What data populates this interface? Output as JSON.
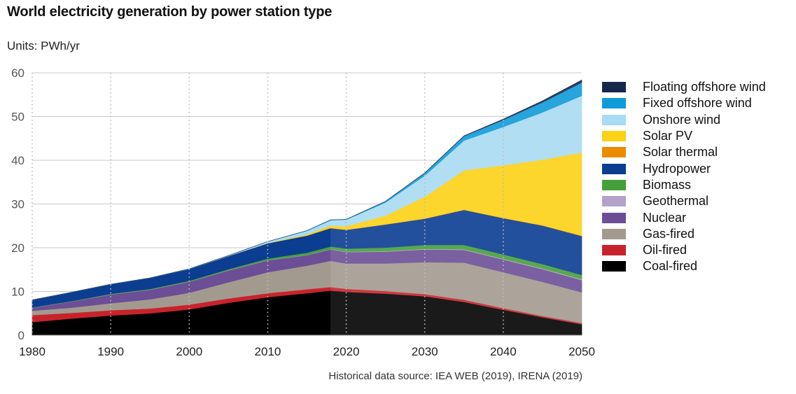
{
  "title": "World electricity generation by power station type",
  "units": "Units: PWh/yr",
  "source": "Historical data source: IEA WEB (2019), IRENA (2019)",
  "chart_data": {
    "type": "area",
    "stacked": true,
    "title": "World electricity generation by power station type",
    "ylabel": "Units: PWh/yr",
    "xlim": [
      1980,
      2050
    ],
    "ylim": [
      0,
      60
    ],
    "x_ticks": [
      1980,
      1990,
      2000,
      2010,
      2020,
      2030,
      2040,
      2050
    ],
    "y_ticks": [
      0,
      10,
      20,
      30,
      40,
      50,
      60
    ],
    "grid": "horizontal solid, vertical dotted at decades",
    "forecast_start": 2018,
    "legend_position": "right",
    "x": [
      1980,
      1985,
      1990,
      1995,
      2000,
      2005,
      2010,
      2015,
      2018,
      2020,
      2025,
      2030,
      2035,
      2040,
      2045,
      2050
    ],
    "series": [
      {
        "name": "Coal-fired",
        "color": "#000000",
        "values": [
          3.0,
          3.8,
          4.5,
          5.0,
          5.9,
          7.4,
          8.7,
          9.6,
          10.2,
          9.9,
          9.5,
          8.9,
          7.6,
          5.8,
          4.1,
          2.5
        ]
      },
      {
        "name": "Oil-fired",
        "color": "#c8232c",
        "values": [
          1.6,
          1.3,
          1.2,
          1.1,
          1.1,
          1.0,
          0.9,
          0.9,
          0.8,
          0.7,
          0.6,
          0.5,
          0.5,
          0.4,
          0.3,
          0.3
        ]
      },
      {
        "name": "Gas-fired",
        "color": "#a39a8f",
        "values": [
          1.0,
          1.2,
          1.6,
          2.1,
          2.7,
          3.7,
          4.8,
          5.4,
          6.0,
          5.8,
          6.3,
          7.3,
          8.5,
          8.2,
          7.8,
          7.0
        ]
      },
      {
        "name": "Nuclear",
        "color": "#6b4e96",
        "values": [
          0.7,
          1.4,
          2.0,
          2.2,
          2.5,
          2.7,
          2.7,
          2.4,
          2.6,
          2.6,
          2.7,
          2.9,
          2.9,
          2.9,
          2.9,
          2.8
        ]
      },
      {
        "name": "Geothermal",
        "color": "#b3a3ca",
        "values": [
          0.02,
          0.03,
          0.04,
          0.04,
          0.05,
          0.06,
          0.07,
          0.08,
          0.09,
          0.1,
          0.12,
          0.14,
          0.15,
          0.16,
          0.17,
          0.18
        ]
      },
      {
        "name": "Biomass",
        "color": "#44a03a",
        "values": [
          0.05,
          0.08,
          0.12,
          0.15,
          0.2,
          0.25,
          0.35,
          0.5,
          0.6,
          0.7,
          0.8,
          0.9,
          1.0,
          1.0,
          1.0,
          1.0
        ]
      },
      {
        "name": "Hydropower",
        "color": "#0b3d91",
        "values": [
          1.7,
          2.0,
          2.2,
          2.5,
          2.7,
          3.0,
          3.5,
          3.9,
          4.2,
          4.3,
          5.3,
          6.0,
          8.0,
          8.3,
          8.8,
          8.9
        ]
      },
      {
        "name": "Solar thermal",
        "color": "#ec8a00",
        "values": [
          0,
          0,
          0,
          0,
          0,
          0,
          0.01,
          0.01,
          0.02,
          0.02,
          0.03,
          0.04,
          0.05,
          0.06,
          0.07,
          0.08
        ]
      },
      {
        "name": "Solar PV",
        "color": "#fcd116",
        "values": [
          0,
          0,
          0,
          0,
          0,
          0,
          0.03,
          0.25,
          0.55,
          0.8,
          2.0,
          5.0,
          9.0,
          12.0,
          15.0,
          19.0
        ]
      },
      {
        "name": "Onshore wind",
        "color": "#a9dbf2",
        "values": [
          0,
          0,
          0,
          0,
          0.03,
          0.1,
          0.35,
          0.85,
          1.25,
          1.5,
          3.0,
          4.8,
          6.8,
          8.8,
          10.8,
          13.0
        ]
      },
      {
        "name": "Fixed offshore wind",
        "color": "#0f9ad8",
        "values": [
          0,
          0,
          0,
          0,
          0,
          0,
          0.01,
          0.03,
          0.06,
          0.08,
          0.25,
          0.6,
          1.0,
          1.6,
          2.3,
          3.0
        ]
      },
      {
        "name": "Floating offshore wind",
        "color": "#17264d",
        "values": [
          0,
          0,
          0,
          0,
          0,
          0,
          0,
          0,
          0,
          0,
          0.02,
          0.05,
          0.1,
          0.2,
          0.35,
          0.6
        ]
      }
    ]
  },
  "legend_items": [
    {
      "label": "Floating offshore wind",
      "color": "#17264d"
    },
    {
      "label": "Fixed offshore wind",
      "color": "#0f9ad8"
    },
    {
      "label": "Onshore wind",
      "color": "#a9dbf2"
    },
    {
      "label": "Solar PV",
      "color": "#fcd116"
    },
    {
      "label": "Solar thermal",
      "color": "#ec8a00"
    },
    {
      "label": "Hydropower",
      "color": "#0b3d91"
    },
    {
      "label": "Biomass",
      "color": "#44a03a"
    },
    {
      "label": "Geothermal",
      "color": "#b3a3ca"
    },
    {
      "label": "Nuclear",
      "color": "#6b4e96"
    },
    {
      "label": "Gas-fired",
      "color": "#a39a8f"
    },
    {
      "label": "Oil-fired",
      "color": "#c8232c"
    },
    {
      "label": "Coal-fired",
      "color": "#000000"
    }
  ]
}
